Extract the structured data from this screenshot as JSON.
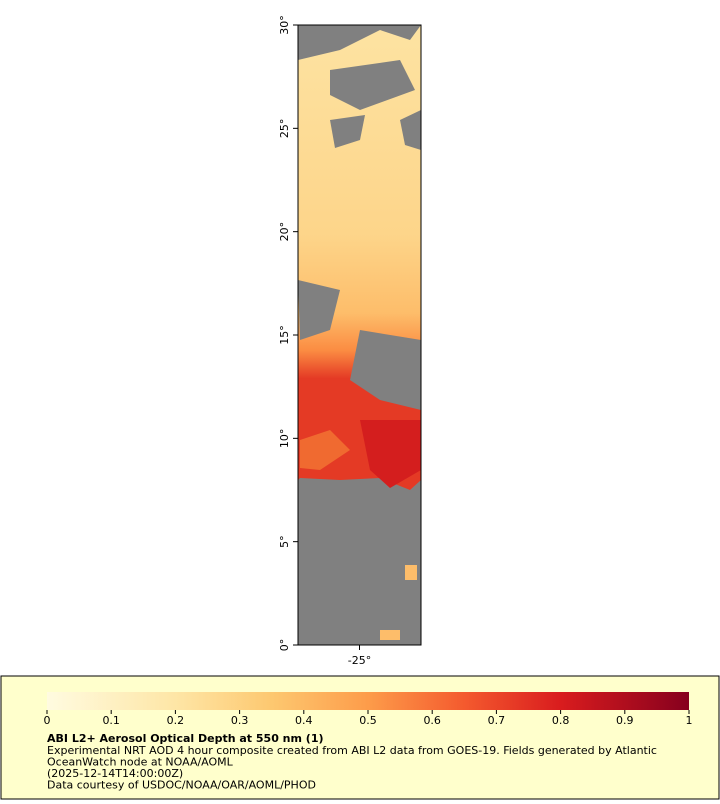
{
  "map": {
    "latlim": [
      0,
      30
    ],
    "lonlim": [
      -28,
      -22
    ],
    "lat_ticks": [
      {
        "value": 0,
        "label": "0°"
      },
      {
        "value": 5,
        "label": "5°"
      },
      {
        "value": 10,
        "label": "10°"
      },
      {
        "value": 15,
        "label": "15°"
      },
      {
        "value": 20,
        "label": "20°"
      },
      {
        "value": 25,
        "label": "25°"
      },
      {
        "value": 30,
        "label": "30°"
      }
    ],
    "lon_ticks": [
      {
        "value": -25,
        "label": "-25°"
      }
    ]
  },
  "legend": {
    "colorbar_lim": [
      0,
      1
    ],
    "colorbar_ticks": [
      0,
      0.1,
      0.2,
      0.3,
      0.4,
      0.5,
      0.6,
      0.7,
      0.8,
      0.9,
      1
    ],
    "title": "ABI L2+ Aerosol Optical Depth at 550 nm (1)",
    "lines": [
      "Experimental NRT AOD 4 hour composite created from ABI L2 data from GOES-19. Fields generated by Atlantic",
      "OceanWatch node at NOAA/AOML",
      "(2025-12-14T14:00:00Z)",
      "Data courtesy of USDOC/NOAA/OAR/AOML/PHOD"
    ]
  }
}
